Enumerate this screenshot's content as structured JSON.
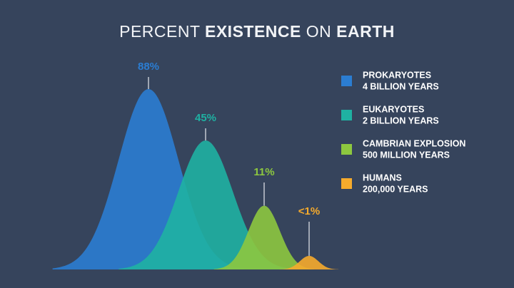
{
  "chart_data": {
    "type": "bell",
    "title": [
      {
        "text": "PERCENT",
        "bold": false
      },
      {
        "text": "EXISTENCE",
        "bold": true
      },
      {
        "text": "ON",
        "bold": false
      },
      {
        "text": "EARTH",
        "bold": true
      }
    ],
    "series": [
      {
        "name": "PROKARYOTES",
        "duration": "4 BILLION YEARS",
        "color": "#2b7dd2",
        "values": [
          88
        ],
        "value_labels": [
          "88%"
        ]
      },
      {
        "name": "EUKARYOTES",
        "duration": "2 BILLION YEARS",
        "color": "#1fb1a2",
        "values": [
          45
        ],
        "value_labels": [
          "45%"
        ]
      },
      {
        "name": "CAMBRIAN EXPLOSION",
        "duration": "500 MILLION YEARS",
        "color": "#8dc83f",
        "values": [
          11
        ],
        "value_labels": [
          "11%"
        ]
      },
      {
        "name": "HUMANS",
        "duration": "200,000 YEARS",
        "color": "#f6ab2c",
        "values": [
          0.5
        ],
        "value_labels": [
          "<1%"
        ]
      }
    ],
    "legend": "right"
  }
}
